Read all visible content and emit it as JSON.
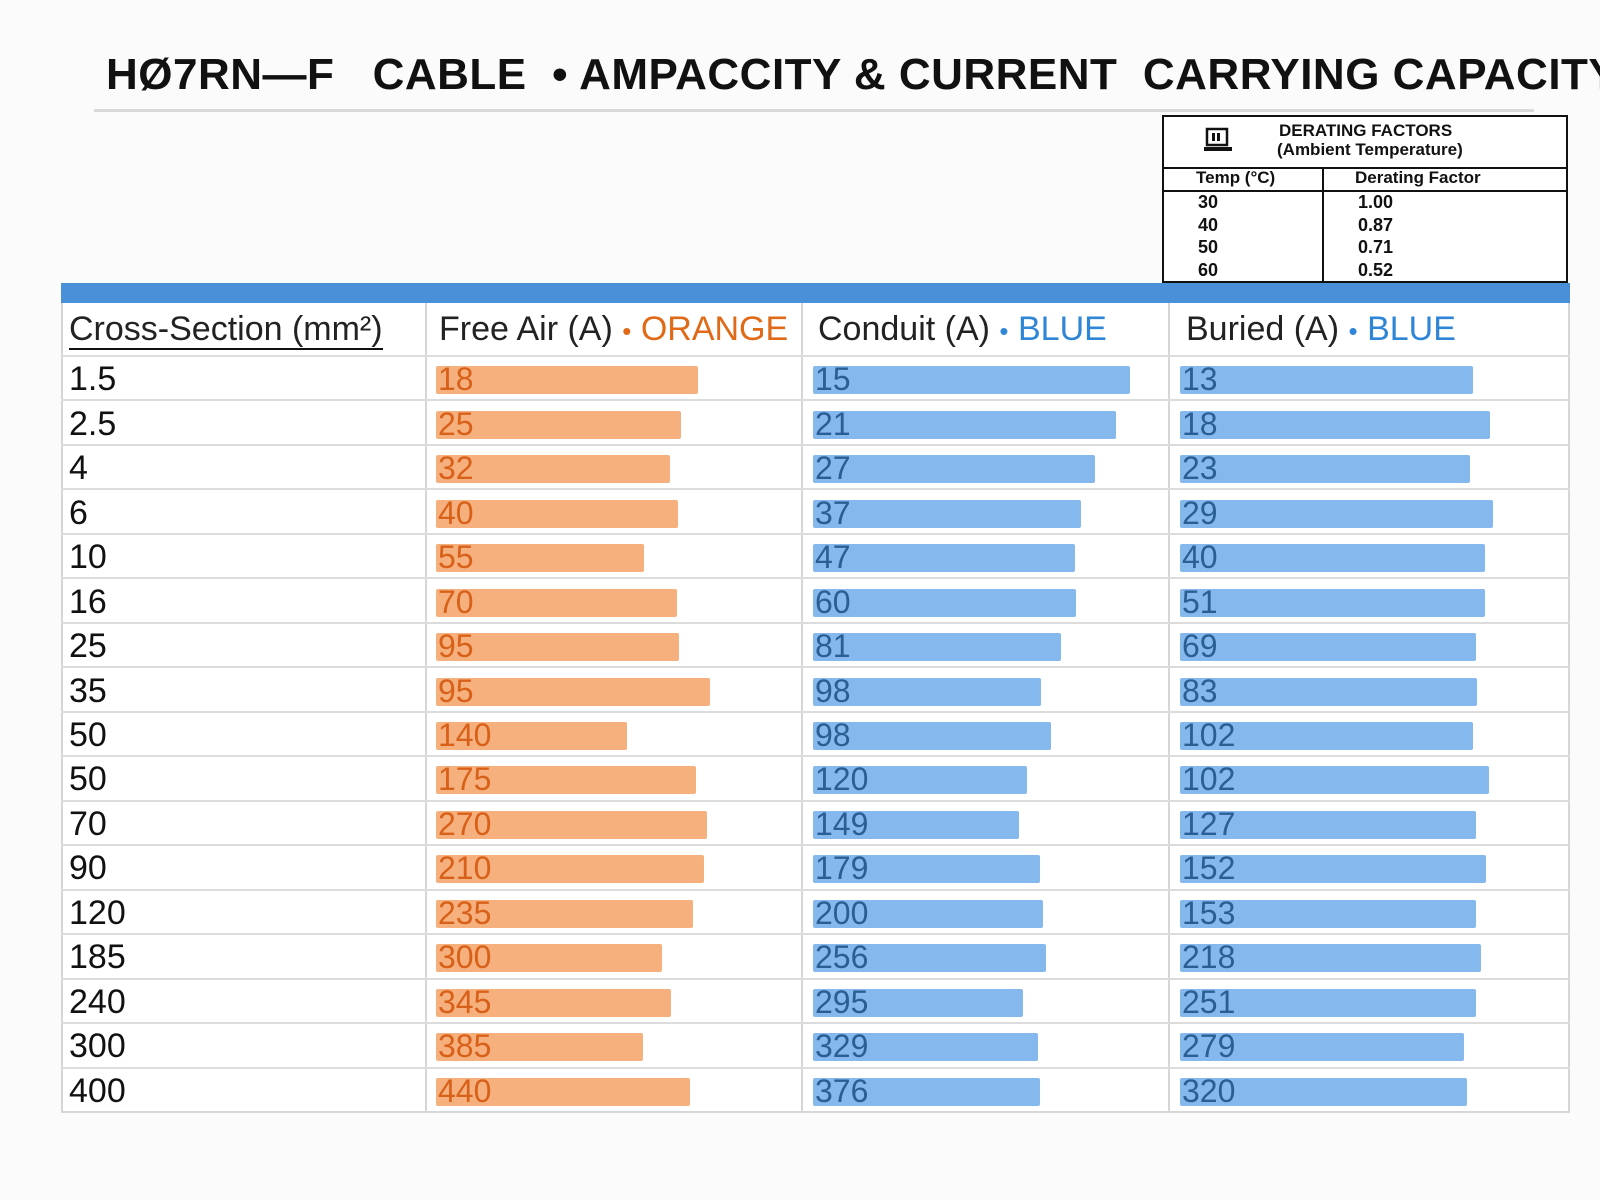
{
  "title": {
    "part_1": "HØ7RN—F",
    "part_2": "CABLE",
    "separator": "•",
    "part_3": "AMPACCITY & CURRENT  CARRYING CAPACITY"
  },
  "derating": {
    "heading_line_1": "DERATING FACTORS",
    "heading_line_2": "(Ambient Temperature)",
    "col_temp": "Temp (°C)",
    "col_factor": "Derating Factor",
    "rows": [
      {
        "temp": "30",
        "factor": "1.00"
      },
      {
        "temp": "40",
        "factor": "0.87"
      },
      {
        "temp": "50",
        "factor": "0.71"
      },
      {
        "temp": "60",
        "factor": "0.52"
      }
    ]
  },
  "table": {
    "headers": {
      "cross_section": "Cross-Section (mm²)",
      "free_air": "Free Air (A)",
      "free_air_color": "ORANGE",
      "conduit": "Conduit (A)",
      "conduit_color": "BLUE",
      "buried": "Buried (A)",
      "buried_color": "BLUE",
      "dot": "•"
    },
    "colors": {
      "orange_bar": "#f6b07d",
      "orange_text": "#e06a17",
      "blue_bar": "#85b9ee",
      "blue_text": "#2f86d6",
      "header_band": "#4a90d9"
    },
    "rows": [
      {
        "cs": "1.5",
        "free_air": "18",
        "conduit": "15",
        "buried": "13"
      },
      {
        "cs": "2.5",
        "free_air": "25",
        "conduit": "21",
        "buried": "18"
      },
      {
        "cs": "4",
        "free_air": "32",
        "conduit": "27",
        "buried": "23"
      },
      {
        "cs": "6",
        "free_air": "40",
        "conduit": "37",
        "buried": "29"
      },
      {
        "cs": "10",
        "free_air": "55",
        "conduit": "47",
        "buried": "40"
      },
      {
        "cs": "16",
        "free_air": "70",
        "conduit": "60",
        "buried": "51"
      },
      {
        "cs": "25",
        "free_air": "95",
        "conduit": "81",
        "buried": "69"
      },
      {
        "cs": "35",
        "free_air": "95",
        "conduit": "98",
        "buried": "83"
      },
      {
        "cs": "50",
        "free_air": "140",
        "conduit": "98",
        "buried": "102"
      },
      {
        "cs": "50",
        "free_air": "175",
        "conduit": "120",
        "buried": "102"
      },
      {
        "cs": "70",
        "free_air": "270",
        "conduit": "149",
        "buried": "127"
      },
      {
        "cs": "90",
        "free_air": "210",
        "conduit": "179",
        "buried": "152"
      },
      {
        "cs": "120",
        "free_air": "235",
        "conduit": "200",
        "buried": "153"
      },
      {
        "cs": "185",
        "free_air": "300",
        "conduit": "256",
        "buried": "218"
      },
      {
        "cs": "240",
        "free_air": "345",
        "conduit": "295",
        "buried": "251"
      },
      {
        "cs": "300",
        "free_air": "385",
        "conduit": "329",
        "buried": "279"
      },
      {
        "cs": "400",
        "free_air": "440",
        "conduit": "376",
        "buried": "320"
      }
    ]
  }
}
